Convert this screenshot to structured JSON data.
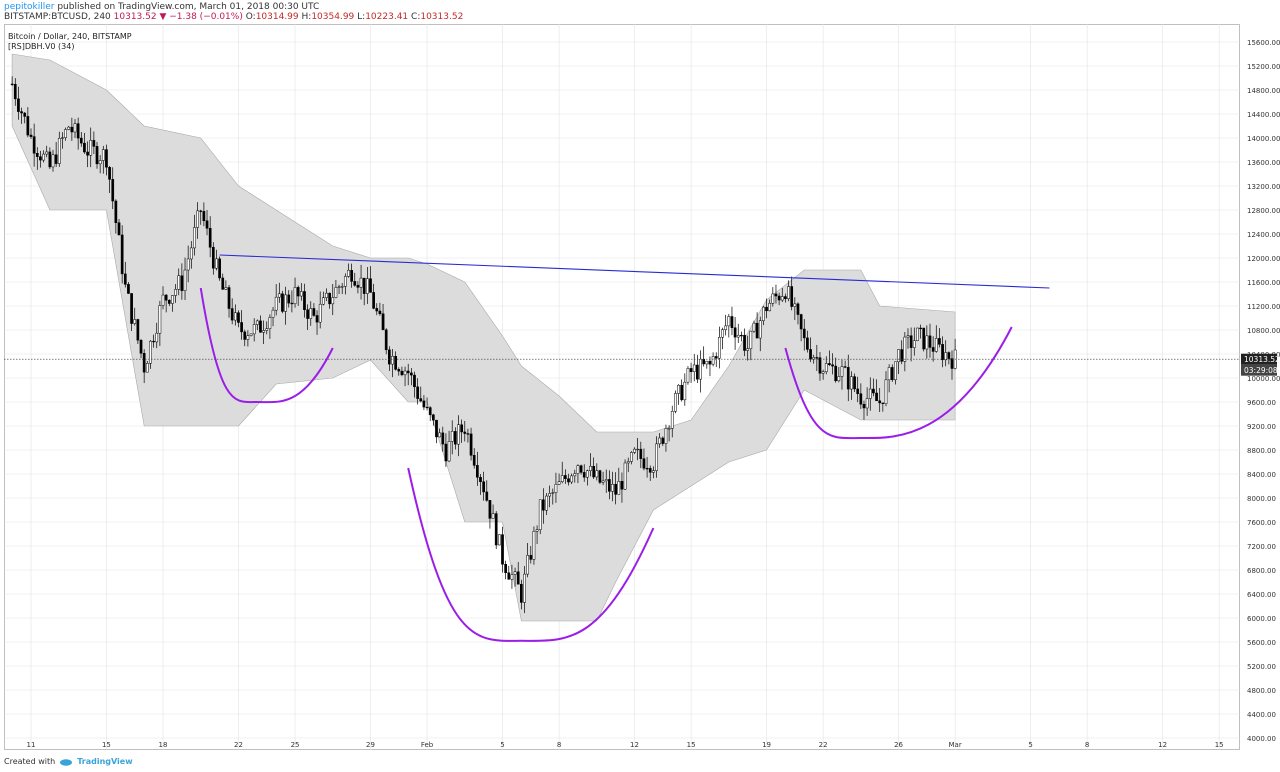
{
  "header": {
    "user": "pepitokiller",
    "published": " published on TradingView.com, March 01, 2018 00:30 UTC",
    "symbol": "BITSTAMP:BTCUSD, 240",
    "change": "10313.52 ▼ −1.38 (−0.01%)",
    "o_label": "O:",
    "o": "10314.99",
    "h_label": "H:",
    "h": "10354.99",
    "l_label": "L:",
    "l": "10223.41",
    "c_label": "C:",
    "c": "10313.52"
  },
  "legend": {
    "title": "Bitcoin / Dollar, 240, BITSTAMP",
    "indicator": "[RS]DBH.V0 (34)"
  },
  "footer": {
    "created": "Created with",
    "brand": "TradingView"
  },
  "price_label": "10313.52",
  "time_label": "03:29:08",
  "colors": {
    "up": "#ffffff",
    "down": "#000000",
    "band": "#dcdcdc",
    "band_edge": "#a8a8a8",
    "neckline": "#2a2ad4",
    "arc": "#9b1ee8",
    "grid": "#e3e3e3"
  },
  "chart_data": {
    "type": "candlestick",
    "symbol": "BITSTAMP:BTCUSD",
    "interval": "240",
    "x_ticks": [
      "11",
      "15",
      "18",
      "22",
      "25",
      "29",
      "Feb",
      "5",
      "8",
      "12",
      "15",
      "19",
      "22",
      "26",
      "Mar",
      "5",
      "8",
      "12",
      "15"
    ],
    "y_ticks": [
      "15600.00",
      "15200.00",
      "14800.00",
      "14400.00",
      "14000.00",
      "13600.00",
      "13200.00",
      "12800.00",
      "12400.00",
      "12000.00",
      "11600.00",
      "11200.00",
      "10800.00",
      "10400.00",
      "10000.00",
      "9600.00",
      "9200.00",
      "8800.00",
      "8400.00",
      "8000.00",
      "7600.00",
      "7200.00",
      "6800.00",
      "6400.00",
      "6000.00",
      "5600.00",
      "5200.00",
      "4800.00",
      "4400.00",
      "4000.00"
    ],
    "ylim": [
      3800,
      15900
    ],
    "close_path": [
      [
        "2018-01-10",
        14900
      ],
      [
        "2018-01-11",
        14000
      ],
      [
        "2018-01-12",
        13500
      ],
      [
        "2018-01-13",
        14200
      ],
      [
        "2018-01-14",
        13800
      ],
      [
        "2018-01-15",
        13700
      ],
      [
        "2018-01-16",
        11500
      ],
      [
        "2018-01-17",
        10200
      ],
      [
        "2018-01-18",
        11300
      ],
      [
        "2018-01-19",
        11600
      ],
      [
        "2018-01-20",
        12800
      ],
      [
        "2018-01-21",
        11600
      ],
      [
        "2018-01-22",
        10800
      ],
      [
        "2018-01-23",
        10800
      ],
      [
        "2018-01-24",
        11200
      ],
      [
        "2018-01-25",
        11400
      ],
      [
        "2018-01-26",
        11000
      ],
      [
        "2018-01-27",
        11400
      ],
      [
        "2018-01-28",
        11800
      ],
      [
        "2018-01-29",
        11400
      ],
      [
        "2018-01-30",
        10400
      ],
      [
        "2018-01-31",
        10100
      ],
      [
        "2018-02-01",
        9400
      ],
      [
        "2018-02-02",
        8800
      ],
      [
        "2018-02-03",
        9200
      ],
      [
        "2018-02-04",
        8200
      ],
      [
        "2018-02-05",
        7000
      ],
      [
        "2018-02-06",
        6400
      ],
      [
        "2018-02-07",
        7800
      ],
      [
        "2018-02-08",
        8200
      ],
      [
        "2018-02-09",
        8600
      ],
      [
        "2018-02-10",
        8300
      ],
      [
        "2018-02-11",
        8100
      ],
      [
        "2018-02-12",
        8700
      ],
      [
        "2018-02-13",
        8600
      ],
      [
        "2018-02-14",
        9500
      ],
      [
        "2018-02-15",
        10100
      ],
      [
        "2018-02-16",
        10200
      ],
      [
        "2018-02-17",
        11000
      ],
      [
        "2018-02-18",
        10500
      ],
      [
        "2018-02-19",
        11200
      ],
      [
        "2018-02-20",
        11500
      ],
      [
        "2018-02-21",
        10600
      ],
      [
        "2018-02-22",
        10200
      ],
      [
        "2018-02-23",
        10100
      ],
      [
        "2018-02-24",
        9700
      ],
      [
        "2018-02-25",
        9600
      ],
      [
        "2018-02-26",
        10400
      ],
      [
        "2018-02-27",
        10700
      ],
      [
        "2018-02-28",
        10500
      ],
      [
        "2018-03-01",
        10313
      ]
    ],
    "band": [
      [
        "2018-01-10",
        15400,
        14200
      ],
      [
        "2018-01-12",
        15300,
        12800
      ],
      [
        "2018-01-15",
        14800,
        12800
      ],
      [
        "2018-01-17",
        14200,
        9200
      ],
      [
        "2018-01-20",
        14000,
        9200
      ],
      [
        "2018-01-22",
        13200,
        9200
      ],
      [
        "2018-01-24",
        12800,
        9900
      ],
      [
        "2018-01-27",
        12200,
        10000
      ],
      [
        "2018-01-29",
        12000,
        10300
      ],
      [
        "2018-01-31",
        12000,
        9600
      ],
      [
        "2018-02-01",
        11900,
        9600
      ],
      [
        "2018-02-03",
        11600,
        7600
      ],
      [
        "2018-02-05",
        10700,
        7600
      ],
      [
        "2018-02-06",
        10200,
        5950
      ],
      [
        "2018-02-08",
        9700,
        5950
      ],
      [
        "2018-02-10",
        9100,
        5950
      ],
      [
        "2018-02-11",
        9100,
        6600
      ],
      [
        "2018-02-13",
        9100,
        7800
      ],
      [
        "2018-02-15",
        9300,
        8200
      ],
      [
        "2018-02-17",
        10200,
        8600
      ],
      [
        "2018-02-19",
        11300,
        8800
      ],
      [
        "2018-02-21",
        11800,
        9800
      ],
      [
        "2018-02-24",
        11800,
        9300
      ],
      [
        "2018-02-25",
        11200,
        9300
      ],
      [
        "2018-03-01",
        11100,
        9300
      ]
    ],
    "annotations": {
      "neckline": [
        [
          "2018-01-21",
          12050
        ],
        [
          "2018-03-06",
          11500
        ]
      ],
      "arcs": [
        {
          "from": [
            "2018-01-20",
            11500
          ],
          "bottom": [
            "2018-01-23",
            9600
          ],
          "to": [
            "2018-01-27",
            10500
          ]
        },
        {
          "from": [
            "2018-01-31",
            8500
          ],
          "bottom": [
            "2018-02-06",
            5620
          ],
          "to": [
            "2018-02-13",
            7500
          ]
        },
        {
          "from": [
            "2018-02-20",
            10500
          ],
          "bottom": [
            "2018-02-24",
            9000
          ],
          "to": [
            "2018-03-04",
            10850
          ]
        }
      ]
    },
    "last_price": 10313.52
  }
}
